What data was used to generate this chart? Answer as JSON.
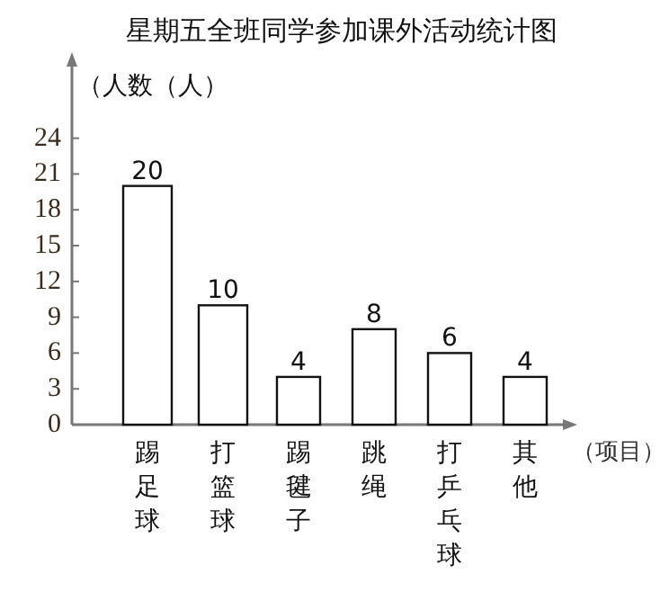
{
  "chart_data": {
    "type": "bar",
    "title": "星期五全班同学参加课外活动统计图",
    "ylabel": "（人数（人）",
    "xlabel": "（项目）",
    "categories": [
      "踢足球",
      "打篮球",
      "踢毽子",
      "跳绳",
      "打乒乓球",
      "其他"
    ],
    "values": [
      20,
      10,
      4,
      8,
      6,
      4
    ],
    "color": "#ffffff",
    "ylim": [
      0,
      30
    ],
    "yticks": [
      0,
      3,
      6,
      9,
      12,
      15,
      18,
      21,
      24
    ],
    "data_labels": true,
    "grid": false
  }
}
